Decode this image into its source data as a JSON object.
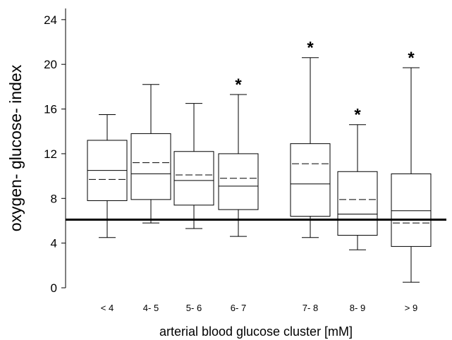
{
  "chart_data": {
    "type": "box",
    "title": "",
    "xlabel": "arterial blood glucose cluster [mM]",
    "ylabel": "oxygen- glucose- index",
    "ylim": [
      0,
      25
    ],
    "yticks": [
      0,
      4,
      8,
      12,
      16,
      20,
      24
    ],
    "yticks_labels": [
      "0",
      "4",
      "8",
      "12",
      "16",
      "20",
      "24"
    ],
    "categories": [
      "< 4",
      "4- 5",
      "5- 6",
      "6- 7",
      "7- 8",
      "8- 9",
      "> 9"
    ],
    "boxes": [
      {
        "category": "< 4",
        "whisker_low": 4.5,
        "q1": 7.8,
        "median": 10.5,
        "mean": 9.7,
        "q3": 13.2,
        "whisker_high": 15.5,
        "significant": false
      },
      {
        "category": "4- 5",
        "whisker_low": 5.8,
        "q1": 7.9,
        "median": 10.2,
        "mean": 11.2,
        "q3": 13.8,
        "whisker_high": 18.2,
        "significant": false
      },
      {
        "category": "5- 6",
        "whisker_low": 5.3,
        "q1": 7.4,
        "median": 9.6,
        "mean": 10.1,
        "q3": 12.2,
        "whisker_high": 16.5,
        "significant": false
      },
      {
        "category": "6- 7",
        "whisker_low": 4.6,
        "q1": 7.0,
        "median": 9.1,
        "mean": 9.8,
        "q3": 12.0,
        "whisker_high": 17.3,
        "significant": true
      },
      {
        "category": "7- 8",
        "whisker_low": 4.5,
        "q1": 6.4,
        "median": 9.3,
        "mean": 11.1,
        "q3": 12.9,
        "whisker_high": 20.6,
        "significant": true
      },
      {
        "category": "8- 9",
        "whisker_low": 3.4,
        "q1": 4.7,
        "median": 6.6,
        "mean": 7.9,
        "q3": 10.4,
        "whisker_high": 14.6,
        "significant": true
      },
      {
        "category": "> 9",
        "whisker_low": 0.5,
        "q1": 3.7,
        "median": 6.9,
        "mean": 5.8,
        "q3": 10.2,
        "whisker_high": 19.7,
        "significant": true
      }
    ],
    "reference_line": 6.1,
    "significance_marker": "*",
    "grid": false,
    "legend": "none"
  }
}
